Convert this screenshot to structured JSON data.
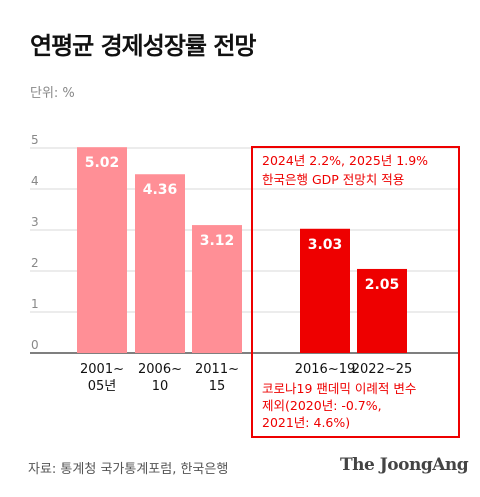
{
  "title": "연평균 경제성장률 전망",
  "unit": "단위: %",
  "source": "자료: 통계청 국가통계포럼, 한국은행",
  "brand": "The JoongAng",
  "chart_data": {
    "type": "bar",
    "ylim": [
      0,
      5.5
    ],
    "yticks": [
      "0",
      "1",
      "2",
      "3",
      "4",
      "5"
    ],
    "categories": [
      [
        "2001~",
        "05년"
      ],
      [
        "2006~",
        "10"
      ],
      [
        "2011~",
        "15"
      ],
      [
        "2016~19"
      ],
      [
        "2022~25"
      ]
    ],
    "values": [
      5.02,
      4.36,
      3.12,
      3.03,
      2.05
    ],
    "value_labels": [
      "5.02",
      "4.36",
      "3.12",
      "3.03",
      "2.05"
    ],
    "colors": [
      "#ff8f96",
      "#ff8f96",
      "#ff8f96",
      "#ee0000",
      "#ee0000"
    ],
    "annotations": {
      "forecast_note": [
        "2024년 2.2%, 2025년 1.9%",
        "한국은행 GDP 전망치 적용"
      ],
      "exclusion_note": [
        "코로나19 팬데믹 이례적 변수",
        "제외(2020년: -0.7%,",
        "2021년: 4.6%)"
      ]
    },
    "highlight_color": "#ee0000"
  }
}
